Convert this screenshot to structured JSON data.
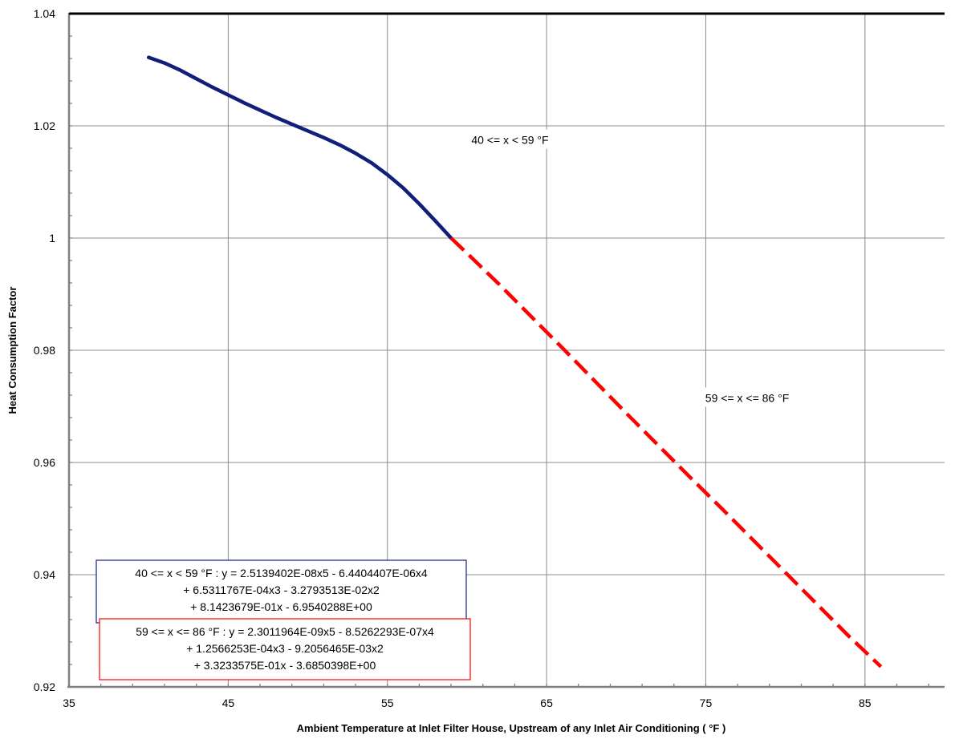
{
  "chart_data": {
    "type": "line",
    "title": "",
    "xlabel": "Ambient Temperature at Inlet Filter House, Upstream of any Inlet Air Conditioning ( °F )",
    "ylabel": "Heat Consumption Factor",
    "xlim": [
      35,
      90
    ],
    "ylim": [
      0.92,
      1.04
    ],
    "x_ticks": [
      "35",
      "45",
      "55",
      "65",
      "75",
      "85"
    ],
    "y_ticks": [
      "0.92",
      "0.94",
      "0.96",
      "0.98",
      "1",
      "1.02",
      "1.04"
    ],
    "grid": true,
    "series": [
      {
        "color": "#0f1f7a",
        "style": "solid",
        "x": [
          40,
          41,
          42,
          43,
          44,
          45,
          46,
          47,
          48,
          49,
          50,
          51,
          52,
          53,
          54,
          55,
          56,
          57,
          58,
          59
        ],
        "y": [
          1.0322,
          1.0312,
          1.0299,
          1.0284,
          1.0269,
          1.0255,
          1.0241,
          1.0228,
          1.0215,
          1.0203,
          1.0191,
          1.0179,
          1.0166,
          1.0151,
          1.0134,
          1.0113,
          1.0089,
          1.0061,
          1.0031,
          1.0
        ]
      },
      {
        "color": "#ff0000",
        "style": "dashed",
        "x": [
          59,
          60,
          62,
          64,
          66,
          68,
          70,
          72,
          74,
          76,
          78,
          80,
          82,
          84,
          86
        ],
        "y": [
          1.0,
          0.9973,
          0.9918,
          0.9861,
          0.9804,
          0.9746,
          0.9688,
          0.9631,
          0.9574,
          0.9518,
          0.9461,
          0.9404,
          0.9347,
          0.929,
          0.9236
        ]
      }
    ],
    "annotations": [
      {
        "text": "40 <= x < 59 °F",
        "x": 62.7,
        "y": 1.0175
      },
      {
        "text": "59 <= x <= 86 °F",
        "x": 77.6,
        "y": 0.9715
      }
    ],
    "equation_boxes": [
      {
        "border": "#0f1f7a",
        "lines": [
          "40 <= x < 59 °F : y = 2.5139402E-08x5 - 6.4404407E-06x4",
          "+ 6.5311767E-04x3 - 3.2793513E-02x2",
          "+ 8.1423679E-01x - 6.9540288E+00"
        ]
      },
      {
        "border": "#ff0000",
        "lines": [
          "59 <= x <= 86 °F : y = 2.3011964E-09x5 - 8.5262293E-07x4",
          "+ 1.2566253E-04x3 - 9.2056465E-03x2",
          "+ 3.3233575E-01x - 3.6850398E+00"
        ]
      }
    ]
  }
}
